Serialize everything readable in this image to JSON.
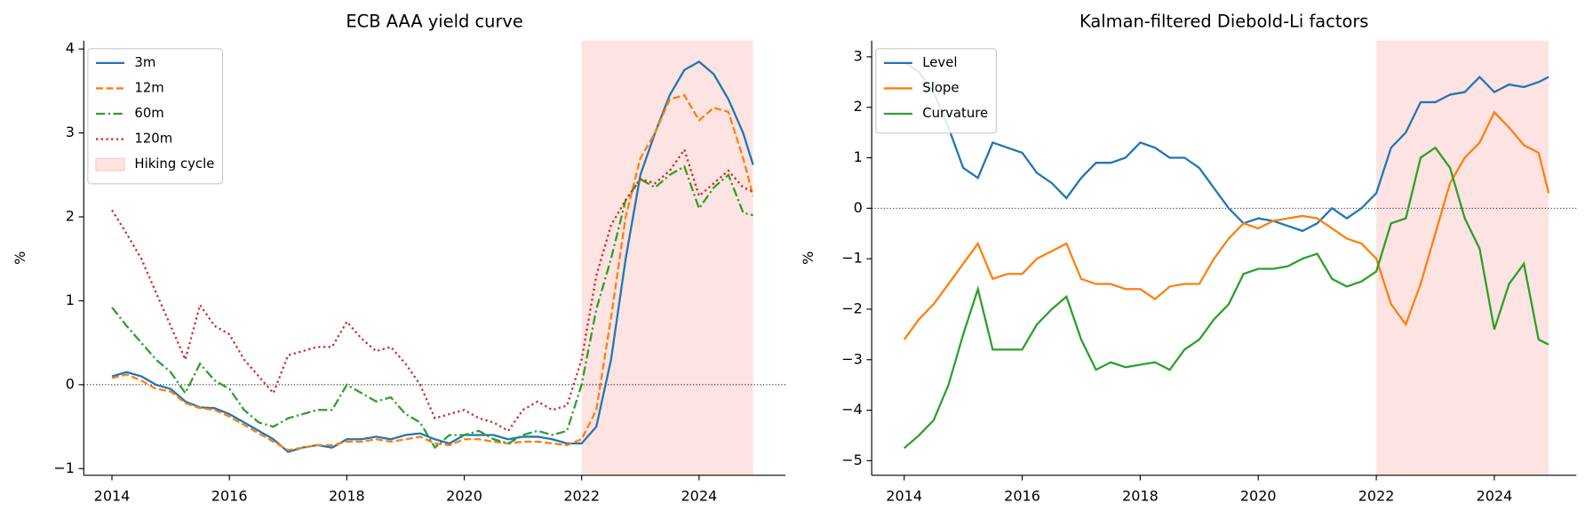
{
  "chart_data": [
    {
      "type": "line",
      "title": "ECB AAA yield curve",
      "ylabel": "%",
      "x": [
        2014,
        2014.25,
        2014.5,
        2014.75,
        2015,
        2015.25,
        2015.5,
        2015.75,
        2016,
        2016.25,
        2016.5,
        2016.75,
        2017,
        2017.25,
        2017.5,
        2017.75,
        2018,
        2018.25,
        2018.5,
        2018.75,
        2019,
        2019.25,
        2019.5,
        2019.75,
        2020,
        2020.25,
        2020.5,
        2020.75,
        2021,
        2021.25,
        2021.5,
        2021.75,
        2022,
        2022.25,
        2022.5,
        2022.75,
        2023,
        2023.25,
        2023.5,
        2023.75,
        2024,
        2024.25,
        2024.5,
        2024.75,
        2024.92
      ],
      "series": [
        {
          "name": "3m",
          "color": "#1f77b4",
          "dash": "solid",
          "values": [
            0.1,
            0.15,
            0.1,
            0.0,
            -0.05,
            -0.2,
            -0.27,
            -0.28,
            -0.35,
            -0.45,
            -0.55,
            -0.65,
            -0.8,
            -0.75,
            -0.72,
            -0.75,
            -0.65,
            -0.65,
            -0.62,
            -0.65,
            -0.6,
            -0.58,
            -0.65,
            -0.7,
            -0.6,
            -0.6,
            -0.6,
            -0.65,
            -0.62,
            -0.62,
            -0.65,
            -0.7,
            -0.7,
            -0.5,
            0.3,
            1.5,
            2.5,
            3.0,
            3.45,
            3.75,
            3.85,
            3.7,
            3.4,
            3.0,
            2.62
          ]
        },
        {
          "name": "12m",
          "color": "#ff7f0e",
          "dash": "dashed",
          "values": [
            0.08,
            0.12,
            0.05,
            -0.05,
            -0.08,
            -0.22,
            -0.28,
            -0.3,
            -0.38,
            -0.48,
            -0.58,
            -0.68,
            -0.78,
            -0.75,
            -0.72,
            -0.72,
            -0.68,
            -0.68,
            -0.65,
            -0.68,
            -0.65,
            -0.62,
            -0.7,
            -0.72,
            -0.65,
            -0.65,
            -0.68,
            -0.7,
            -0.68,
            -0.68,
            -0.7,
            -0.72,
            -0.65,
            -0.3,
            0.8,
            2.0,
            2.7,
            3.0,
            3.4,
            3.45,
            3.15,
            3.3,
            3.25,
            2.7,
            2.25
          ]
        },
        {
          "name": "60m",
          "color": "#2ca02c",
          "dash": "dashdot",
          "values": [
            0.92,
            0.7,
            0.5,
            0.3,
            0.15,
            -0.1,
            0.25,
            0.05,
            -0.05,
            -0.3,
            -0.45,
            -0.5,
            -0.4,
            -0.35,
            -0.3,
            -0.3,
            0.0,
            -0.1,
            -0.2,
            -0.15,
            -0.35,
            -0.45,
            -0.75,
            -0.6,
            -0.6,
            -0.55,
            -0.65,
            -0.7,
            -0.6,
            -0.55,
            -0.6,
            -0.55,
            0.0,
            0.9,
            1.5,
            2.2,
            2.45,
            2.35,
            2.5,
            2.6,
            2.1,
            2.35,
            2.5,
            2.05,
            2.02
          ]
        },
        {
          "name": "120m",
          "color": "#d62728",
          "dash": "dotted",
          "values": [
            2.08,
            1.8,
            1.5,
            1.1,
            0.7,
            0.3,
            0.95,
            0.7,
            0.6,
            0.3,
            0.1,
            -0.1,
            0.35,
            0.4,
            0.45,
            0.45,
            0.75,
            0.55,
            0.4,
            0.45,
            0.25,
            0.0,
            -0.4,
            -0.35,
            -0.3,
            -0.4,
            -0.45,
            -0.55,
            -0.3,
            -0.2,
            -0.3,
            -0.25,
            0.3,
            1.3,
            1.9,
            2.2,
            2.45,
            2.4,
            2.55,
            2.8,
            2.25,
            2.4,
            2.55,
            2.35,
            2.3
          ]
        }
      ],
      "shaded": {
        "name": "Hiking cycle",
        "x0": 2022,
        "x1": 2024.92,
        "color": "#fde3e1"
      },
      "hline": 0,
      "xlim": [
        2013.52,
        2025.47
      ],
      "xticks": [
        2014,
        2016,
        2018,
        2020,
        2022,
        2024
      ],
      "ylim": [
        -1.08,
        4.1
      ],
      "yticks": [
        {
          "value": -1,
          "label": "−1"
        },
        0,
        1,
        2,
        3,
        4
      ],
      "legend": "upper left"
    },
    {
      "type": "line",
      "title": "Kalman-filtered Diebold-Li factors",
      "ylabel": "%",
      "x": [
        2014,
        2014.25,
        2014.5,
        2014.75,
        2015,
        2015.25,
        2015.5,
        2015.75,
        2016,
        2016.25,
        2016.5,
        2016.75,
        2017,
        2017.25,
        2017.5,
        2017.75,
        2018,
        2018.25,
        2018.5,
        2018.75,
        2019,
        2019.25,
        2019.5,
        2019.75,
        2020,
        2020.25,
        2020.5,
        2020.75,
        2021,
        2021.25,
        2021.5,
        2021.75,
        2022,
        2022.25,
        2022.5,
        2022.75,
        2023,
        2023.25,
        2023.5,
        2023.75,
        2024,
        2024.25,
        2024.5,
        2024.75,
        2024.92
      ],
      "series": [
        {
          "name": "Level",
          "color": "#1f77b4",
          "dash": "solid",
          "values": [
            2.9,
            2.7,
            2.3,
            1.6,
            0.8,
            0.6,
            1.3,
            1.2,
            1.1,
            0.7,
            0.5,
            0.2,
            0.6,
            0.9,
            0.9,
            1.0,
            1.3,
            1.2,
            1.0,
            1.0,
            0.8,
            0.4,
            0.0,
            -0.3,
            -0.2,
            -0.25,
            -0.35,
            -0.45,
            -0.3,
            0.0,
            -0.2,
            0.0,
            0.3,
            1.2,
            1.5,
            2.1,
            2.1,
            2.25,
            2.3,
            2.6,
            2.3,
            2.45,
            2.4,
            2.5,
            2.6
          ]
        },
        {
          "name": "Slope",
          "color": "#ff7f0e",
          "dash": "solid",
          "values": [
            -2.6,
            -2.2,
            -1.9,
            -1.5,
            -1.1,
            -0.7,
            -1.4,
            -1.3,
            -1.3,
            -1.0,
            -0.85,
            -0.7,
            -1.4,
            -1.5,
            -1.5,
            -1.6,
            -1.6,
            -1.8,
            -1.55,
            -1.5,
            -1.5,
            -1.0,
            -0.6,
            -0.3,
            -0.4,
            -0.25,
            -0.2,
            -0.15,
            -0.2,
            -0.4,
            -0.6,
            -0.7,
            -1.0,
            -1.9,
            -2.3,
            -1.5,
            -0.5,
            0.5,
            1.0,
            1.3,
            1.9,
            1.6,
            1.25,
            1.1,
            0.3
          ]
        },
        {
          "name": "Curvature",
          "color": "#2ca02c",
          "dash": "solid",
          "values": [
            -4.75,
            -4.5,
            -4.2,
            -3.5,
            -2.5,
            -1.6,
            -2.8,
            -2.8,
            -2.8,
            -2.3,
            -2.0,
            -1.75,
            -2.6,
            -3.2,
            -3.05,
            -3.15,
            -3.1,
            -3.05,
            -3.2,
            -2.8,
            -2.6,
            -2.2,
            -1.9,
            -1.3,
            -1.2,
            -1.2,
            -1.15,
            -1.0,
            -0.9,
            -1.4,
            -1.55,
            -1.45,
            -1.25,
            -0.3,
            -0.2,
            1.0,
            1.2,
            0.8,
            -0.2,
            -0.8,
            -2.4,
            -1.5,
            -1.1,
            -2.6,
            -2.7
          ]
        }
      ],
      "shaded": {
        "x0": 2022,
        "x1": 2024.92,
        "color": "#fde3e1"
      },
      "hline": 0,
      "xlim": [
        2013.45,
        2025.39
      ],
      "xticks": [
        2014,
        2016,
        2018,
        2020,
        2022,
        2024
      ],
      "ylim": [
        -5.29,
        3.32
      ],
      "yticks": [
        {
          "value": -5,
          "label": "−5"
        },
        {
          "value": -4,
          "label": "−4"
        },
        {
          "value": -3,
          "label": "−3"
        },
        {
          "value": -2,
          "label": "−2"
        },
        {
          "value": -1,
          "label": "−1"
        },
        0,
        1,
        2,
        3
      ],
      "legend": "upper left"
    }
  ]
}
